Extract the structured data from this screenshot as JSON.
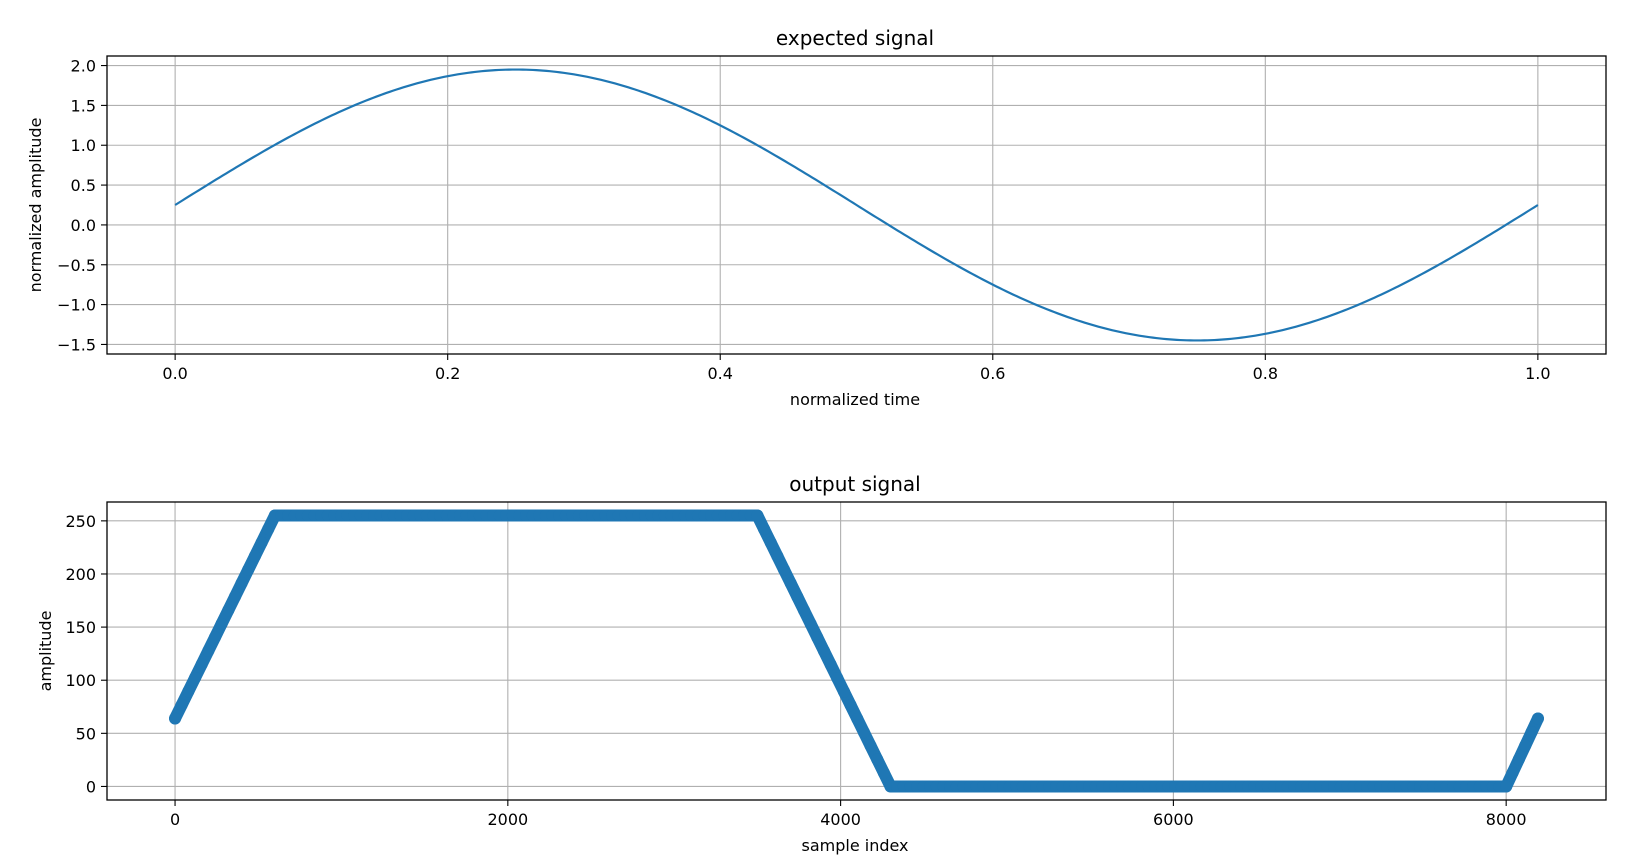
{
  "colors": {
    "series": "#1f77b4",
    "grid": "#b0b0b0",
    "frame": "#000000"
  },
  "chart_data": [
    {
      "type": "line",
      "title": "expected signal",
      "xlabel": "normalized time",
      "ylabel": "normalized amplitude",
      "xlim": [
        -0.05,
        1.05
      ],
      "ylim": [
        -1.62,
        2.12
      ],
      "xticks": [
        0.0,
        0.2,
        0.4,
        0.6,
        0.8,
        1.0
      ],
      "xtick_labels": [
        "0.0",
        "0.2",
        "0.4",
        "0.6",
        "0.8",
        "1.0"
      ],
      "yticks": [
        -1.5,
        -1.0,
        -0.5,
        0.0,
        0.5,
        1.0,
        1.5,
        2.0
      ],
      "ytick_labels": [
        "−1.5",
        "−1.0",
        "−0.5",
        "0.0",
        "0.5",
        "1.0",
        "1.5",
        "2.0"
      ],
      "grid": true,
      "series": [
        {
          "x": [
            0.0,
            0.05,
            0.1,
            0.15,
            0.2,
            0.25,
            0.3,
            0.35,
            0.4,
            0.45,
            0.5,
            0.55,
            0.6,
            0.65,
            0.7,
            0.75,
            0.8,
            0.85,
            0.9,
            0.95,
            1.0
          ],
          "y": [
            0.25,
            0.79,
            1.28,
            1.66,
            1.89,
            1.95,
            1.87,
            1.64,
            1.27,
            0.79,
            0.25,
            -0.29,
            -0.77,
            -1.16,
            -1.39,
            -1.45,
            -1.37,
            -1.14,
            -0.78,
            -0.3,
            0.25
          ]
        }
      ]
    },
    {
      "type": "scatter",
      "title": "output signal",
      "xlabel": "sample index",
      "ylabel": "amplitude",
      "xlim": [
        -409,
        8600
      ],
      "ylim": [
        -12.75,
        267.75
      ],
      "xticks": [
        0,
        2000,
        4000,
        6000,
        8000
      ],
      "xtick_labels": [
        "0",
        "2000",
        "4000",
        "6000",
        "8000"
      ],
      "yticks": [
        0,
        50,
        100,
        150,
        200,
        250
      ],
      "ytick_labels": [
        "0",
        "50",
        "100",
        "150",
        "200",
        "250"
      ],
      "grid": true,
      "series": [
        {
          "x": [
            0,
            600,
            3500,
            4300,
            8000,
            8191
          ],
          "y": [
            64,
            255,
            255,
            0,
            0,
            64
          ]
        }
      ]
    }
  ]
}
